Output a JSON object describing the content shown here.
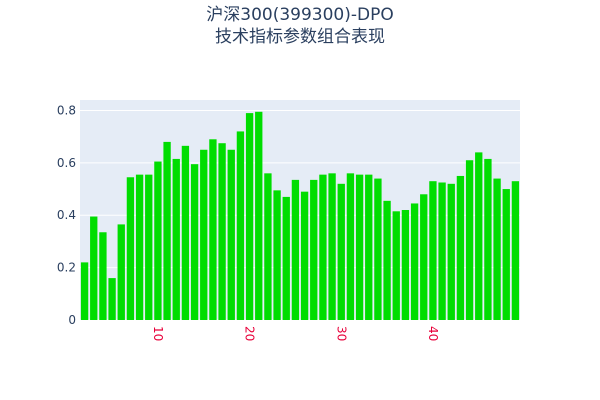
{
  "chart_data": {
    "type": "bar",
    "title": "沪深300(399300)-DPO",
    "subtitle": "技术指标参数组合表现",
    "x": [
      2,
      3,
      4,
      5,
      6,
      7,
      8,
      9,
      10,
      11,
      12,
      13,
      14,
      15,
      16,
      17,
      18,
      19,
      20,
      21,
      22,
      23,
      24,
      25,
      26,
      27,
      28,
      29,
      30,
      31,
      32,
      33,
      34,
      35,
      36,
      37,
      38,
      39,
      40,
      41,
      42,
      43,
      44,
      45,
      46,
      47,
      48,
      49
    ],
    "values": [
      0.22,
      0.395,
      0.335,
      0.16,
      0.365,
      0.545,
      0.555,
      0.555,
      0.605,
      0.68,
      0.615,
      0.665,
      0.595,
      0.65,
      0.69,
      0.675,
      0.65,
      0.72,
      0.79,
      0.795,
      0.56,
      0.495,
      0.47,
      0.535,
      0.49,
      0.535,
      0.555,
      0.56,
      0.52,
      0.56,
      0.555,
      0.555,
      0.54,
      0.455,
      0.415,
      0.42,
      0.445,
      0.48,
      0.53,
      0.525,
      0.52,
      0.55,
      0.61,
      0.64,
      0.615,
      0.54,
      0.5,
      0.53
    ],
    "color": "#00dd00",
    "xlim": [
      1.5,
      49.5
    ],
    "xticks": [
      10,
      20,
      30,
      40
    ],
    "ylim": [
      0,
      0.84
    ],
    "yticks": [
      0,
      0.2,
      0.4,
      0.6,
      0.8
    ],
    "grid": true
  }
}
